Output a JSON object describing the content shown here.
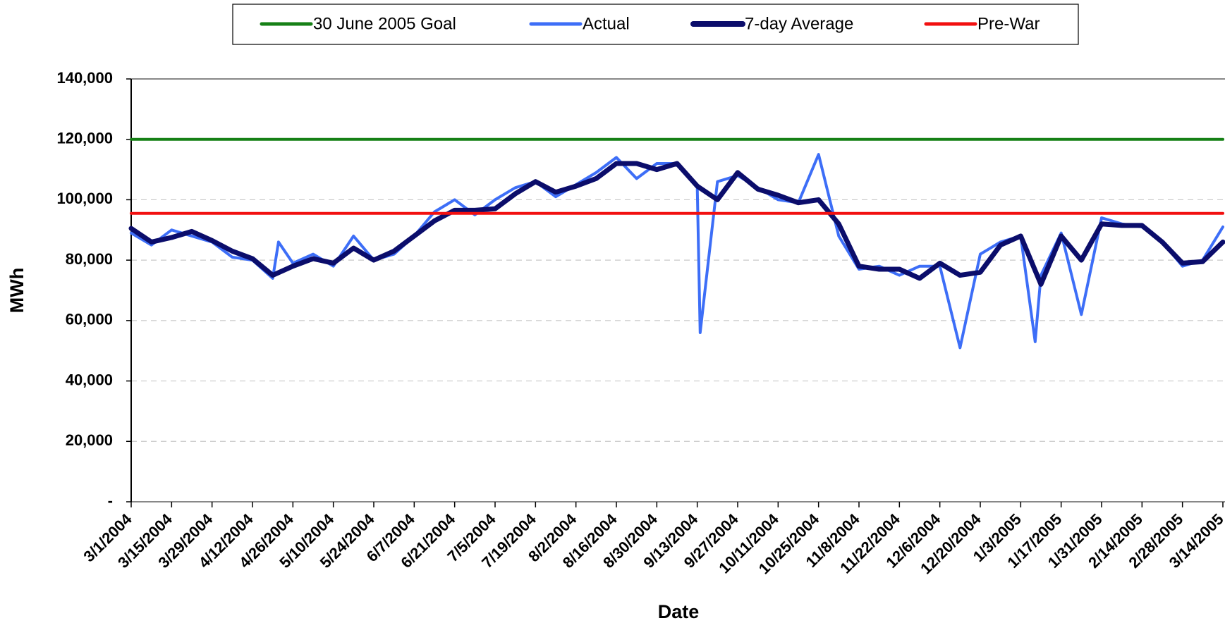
{
  "chart_data": {
    "type": "line",
    "xlabel": "Date",
    "ylabel": "MWh",
    "xlim": [
      "3/1/2004",
      "3/14/2005"
    ],
    "xticks": [
      "3/1/2004",
      "3/15/2004",
      "3/29/2004",
      "4/12/2004",
      "4/26/2004",
      "5/10/2004",
      "5/24/2004",
      "6/7/2004",
      "6/21/2004",
      "7/5/2004",
      "7/19/2004",
      "8/2/2004",
      "8/16/2004",
      "8/30/2004",
      "9/13/2004",
      "9/27/2004",
      "10/11/2004",
      "10/25/2004",
      "11/8/2004",
      "11/22/2004",
      "12/6/2004",
      "12/20/2004",
      "1/3/2005",
      "1/17/2005",
      "1/31/2005",
      "2/14/2005",
      "2/28/2005",
      "3/14/2005"
    ],
    "ylim": [
      0,
      140000
    ],
    "yticks": [
      {
        "value": 0,
        "label": "-"
      },
      {
        "value": 20000,
        "label": "20,000"
      },
      {
        "value": 40000,
        "label": "40,000"
      },
      {
        "value": 60000,
        "label": "60,000"
      },
      {
        "value": 80000,
        "label": "80,000"
      },
      {
        "value": 100000,
        "label": "100,000"
      },
      {
        "value": 120000,
        "label": "120,000"
      },
      {
        "value": 140000,
        "label": "140,000"
      }
    ],
    "grid": true,
    "legend": "top",
    "series": [
      {
        "name": "30 June 2005 Goal",
        "color": "#168016",
        "width": 4,
        "x": [
          "3/1/2004",
          "3/14/2005"
        ],
        "values": [
          120000,
          120000
        ]
      },
      {
        "name": "Actual",
        "color": "#3d6ef7",
        "width": 4,
        "x": [
          "3/1/2004",
          "3/8/2004",
          "3/15/2004",
          "3/22/2004",
          "3/29/2004",
          "4/5/2004",
          "4/12/2004",
          "4/19/2004",
          "4/21/2004",
          "4/26/2004",
          "5/3/2004",
          "5/10/2004",
          "5/17/2004",
          "5/24/2004",
          "5/31/2004",
          "6/7/2004",
          "6/14/2004",
          "6/21/2004",
          "6/28/2004",
          "7/5/2004",
          "7/12/2004",
          "7/19/2004",
          "7/26/2004",
          "8/2/2004",
          "8/9/2004",
          "8/16/2004",
          "8/23/2004",
          "8/30/2004",
          "9/6/2004",
          "9/13/2004",
          "9/14/2004",
          "9/20/2004",
          "9/27/2004",
          "10/4/2004",
          "10/11/2004",
          "10/18/2004",
          "10/25/2004",
          "11/1/2004",
          "11/8/2004",
          "11/15/2004",
          "11/22/2004",
          "11/29/2004",
          "12/6/2004",
          "12/13/2004",
          "12/20/2004",
          "12/27/2004",
          "1/3/2005",
          "1/8/2005",
          "1/10/2005",
          "1/17/2005",
          "1/24/2005",
          "1/31/2005",
          "2/7/2005",
          "2/14/2005",
          "2/21/2005",
          "2/28/2005",
          "3/7/2005",
          "3/14/2005"
        ],
        "values": [
          89000,
          85000,
          90000,
          88000,
          86000,
          81000,
          80000,
          74000,
          86000,
          79000,
          82000,
          78000,
          88000,
          80000,
          82000,
          88000,
          96000,
          100000,
          95000,
          100000,
          104000,
          106000,
          101000,
          105000,
          109000,
          114000,
          107000,
          112000,
          112000,
          104000,
          56000,
          106000,
          108000,
          104000,
          100000,
          99000,
          115000,
          88000,
          77000,
          78000,
          75000,
          78000,
          78000,
          51000,
          82000,
          86000,
          88000,
          53000,
          75000,
          89000,
          62000,
          94000,
          92000,
          91000,
          86000,
          78000,
          80000,
          91000
        ]
      },
      {
        "name": "7-day Average",
        "color": "#0b0d6b",
        "width": 7,
        "x": [
          "3/1/2004",
          "3/8/2004",
          "3/15/2004",
          "3/22/2004",
          "3/29/2004",
          "4/5/2004",
          "4/12/2004",
          "4/19/2004",
          "4/26/2004",
          "5/3/2004",
          "5/10/2004",
          "5/17/2004",
          "5/24/2004",
          "5/31/2004",
          "6/7/2004",
          "6/14/2004",
          "6/21/2004",
          "6/28/2004",
          "7/5/2004",
          "7/12/2004",
          "7/19/2004",
          "7/26/2004",
          "8/2/2004",
          "8/9/2004",
          "8/16/2004",
          "8/23/2004",
          "8/30/2004",
          "9/6/2004",
          "9/13/2004",
          "9/20/2004",
          "9/27/2004",
          "10/4/2004",
          "10/11/2004",
          "10/18/2004",
          "10/25/2004",
          "11/1/2004",
          "11/8/2004",
          "11/15/2004",
          "11/22/2004",
          "11/29/2004",
          "12/6/2004",
          "12/13/2004",
          "12/20/2004",
          "12/27/2004",
          "1/3/2005",
          "1/10/2005",
          "1/17/2005",
          "1/24/2005",
          "1/31/2005",
          "2/7/2005",
          "2/14/2005",
          "2/21/2005",
          "2/28/2005",
          "3/7/2005",
          "3/14/2005"
        ],
        "values": [
          90500,
          86000,
          87500,
          89500,
          86500,
          83000,
          80500,
          75000,
          78000,
          80500,
          79000,
          84000,
          80000,
          83000,
          88000,
          93000,
          96500,
          96500,
          97000,
          102000,
          106000,
          102500,
          104500,
          107000,
          112000,
          112000,
          110000,
          112000,
          104500,
          100000,
          109000,
          103500,
          101500,
          99000,
          100000,
          92000,
          78000,
          77000,
          77000,
          74000,
          79000,
          75000,
          76000,
          85000,
          88000,
          72000,
          88000,
          80000,
          92000,
          91500,
          91500,
          86000,
          79000,
          79500,
          86000
        ]
      },
      {
        "name": "Pre-War",
        "color": "#f21010",
        "width": 4,
        "x": [
          "3/1/2004",
          "3/14/2005"
        ],
        "values": [
          95500,
          95500
        ]
      }
    ]
  }
}
